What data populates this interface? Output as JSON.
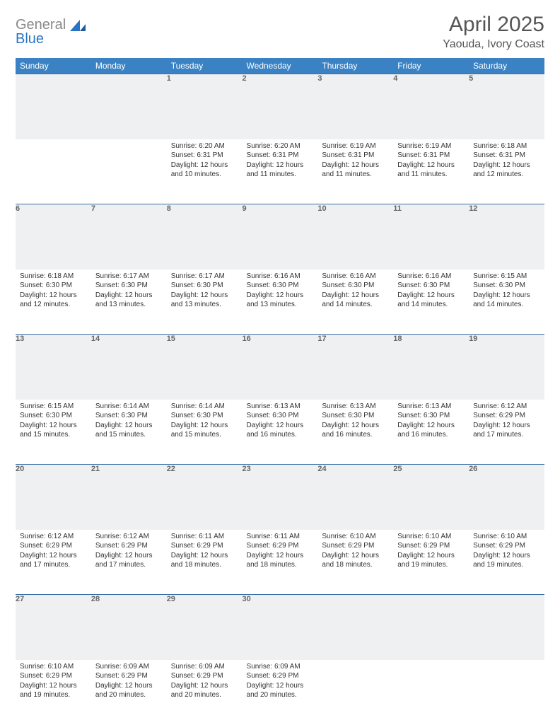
{
  "brand": {
    "gray": "General",
    "blue": "Blue"
  },
  "title": "April 2025",
  "location": "Yaouda, Ivory Coast",
  "colors": {
    "header_bg": "#3a82c4",
    "header_text": "#ffffff",
    "row_border": "#3a6fa5",
    "daynum_bg": "#eef0f2",
    "body_text": "#333333",
    "logo_gray": "#888888",
    "logo_blue": "#2b74c3",
    "page_bg": "#ffffff"
  },
  "weekdays": [
    "Sunday",
    "Monday",
    "Tuesday",
    "Wednesday",
    "Thursday",
    "Friday",
    "Saturday"
  ],
  "grid": {
    "first_weekday_index": 2,
    "days_in_month": 30
  },
  "days": {
    "1": {
      "sunrise": "6:20 AM",
      "sunset": "6:31 PM",
      "daylight": "12 hours and 10 minutes."
    },
    "2": {
      "sunrise": "6:20 AM",
      "sunset": "6:31 PM",
      "daylight": "12 hours and 11 minutes."
    },
    "3": {
      "sunrise": "6:19 AM",
      "sunset": "6:31 PM",
      "daylight": "12 hours and 11 minutes."
    },
    "4": {
      "sunrise": "6:19 AM",
      "sunset": "6:31 PM",
      "daylight": "12 hours and 11 minutes."
    },
    "5": {
      "sunrise": "6:18 AM",
      "sunset": "6:31 PM",
      "daylight": "12 hours and 12 minutes."
    },
    "6": {
      "sunrise": "6:18 AM",
      "sunset": "6:30 PM",
      "daylight": "12 hours and 12 minutes."
    },
    "7": {
      "sunrise": "6:17 AM",
      "sunset": "6:30 PM",
      "daylight": "12 hours and 13 minutes."
    },
    "8": {
      "sunrise": "6:17 AM",
      "sunset": "6:30 PM",
      "daylight": "12 hours and 13 minutes."
    },
    "9": {
      "sunrise": "6:16 AM",
      "sunset": "6:30 PM",
      "daylight": "12 hours and 13 minutes."
    },
    "10": {
      "sunrise": "6:16 AM",
      "sunset": "6:30 PM",
      "daylight": "12 hours and 14 minutes."
    },
    "11": {
      "sunrise": "6:16 AM",
      "sunset": "6:30 PM",
      "daylight": "12 hours and 14 minutes."
    },
    "12": {
      "sunrise": "6:15 AM",
      "sunset": "6:30 PM",
      "daylight": "12 hours and 14 minutes."
    },
    "13": {
      "sunrise": "6:15 AM",
      "sunset": "6:30 PM",
      "daylight": "12 hours and 15 minutes."
    },
    "14": {
      "sunrise": "6:14 AM",
      "sunset": "6:30 PM",
      "daylight": "12 hours and 15 minutes."
    },
    "15": {
      "sunrise": "6:14 AM",
      "sunset": "6:30 PM",
      "daylight": "12 hours and 15 minutes."
    },
    "16": {
      "sunrise": "6:13 AM",
      "sunset": "6:30 PM",
      "daylight": "12 hours and 16 minutes."
    },
    "17": {
      "sunrise": "6:13 AM",
      "sunset": "6:30 PM",
      "daylight": "12 hours and 16 minutes."
    },
    "18": {
      "sunrise": "6:13 AM",
      "sunset": "6:30 PM",
      "daylight": "12 hours and 16 minutes."
    },
    "19": {
      "sunrise": "6:12 AM",
      "sunset": "6:29 PM",
      "daylight": "12 hours and 17 minutes."
    },
    "20": {
      "sunrise": "6:12 AM",
      "sunset": "6:29 PM",
      "daylight": "12 hours and 17 minutes."
    },
    "21": {
      "sunrise": "6:12 AM",
      "sunset": "6:29 PM",
      "daylight": "12 hours and 17 minutes."
    },
    "22": {
      "sunrise": "6:11 AM",
      "sunset": "6:29 PM",
      "daylight": "12 hours and 18 minutes."
    },
    "23": {
      "sunrise": "6:11 AM",
      "sunset": "6:29 PM",
      "daylight": "12 hours and 18 minutes."
    },
    "24": {
      "sunrise": "6:10 AM",
      "sunset": "6:29 PM",
      "daylight": "12 hours and 18 minutes."
    },
    "25": {
      "sunrise": "6:10 AM",
      "sunset": "6:29 PM",
      "daylight": "12 hours and 19 minutes."
    },
    "26": {
      "sunrise": "6:10 AM",
      "sunset": "6:29 PM",
      "daylight": "12 hours and 19 minutes."
    },
    "27": {
      "sunrise": "6:10 AM",
      "sunset": "6:29 PM",
      "daylight": "12 hours and 19 minutes."
    },
    "28": {
      "sunrise": "6:09 AM",
      "sunset": "6:29 PM",
      "daylight": "12 hours and 20 minutes."
    },
    "29": {
      "sunrise": "6:09 AM",
      "sunset": "6:29 PM",
      "daylight": "12 hours and 20 minutes."
    },
    "30": {
      "sunrise": "6:09 AM",
      "sunset": "6:29 PM",
      "daylight": "12 hours and 20 minutes."
    }
  },
  "labels": {
    "sunrise": "Sunrise:",
    "sunset": "Sunset:",
    "daylight": "Daylight:"
  },
  "typography": {
    "title_fontsize": 30,
    "location_fontsize": 16,
    "weekday_fontsize": 12,
    "daynum_fontsize": 11,
    "cell_fontsize": 10
  }
}
